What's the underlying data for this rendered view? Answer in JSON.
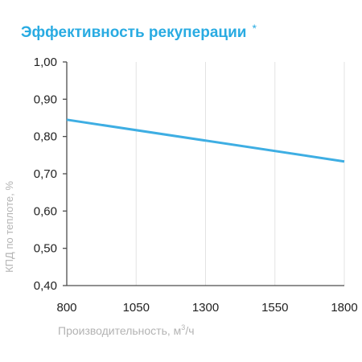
{
  "chart_data": {
    "type": "line",
    "title": "Эффективность рекуперации",
    "title_mark": "*",
    "xlabel_main": "Производительность, м",
    "xlabel_sup": "3",
    "xlabel_tail": "/ч",
    "ylabel": "КПД по теплоте, %",
    "x_ticks": [
      "800",
      "1050",
      "1300",
      "1550",
      "1800"
    ],
    "y_ticks": [
      "0,40",
      "0,50",
      "0,60",
      "0,70",
      "0,80",
      "0,90",
      "1,00"
    ],
    "xlim": [
      800,
      1800
    ],
    "ylim": [
      0.4,
      1.0
    ],
    "grid": "vertical",
    "series": [
      {
        "x": [
          800,
          1800
        ],
        "y": [
          0.845,
          0.733
        ]
      }
    ],
    "colors": {
      "title": "#29abe2",
      "line": "#3eaee3",
      "axis": "#4d4d4d",
      "grid": "#e3e3e3",
      "axis_title": "#b3b3b3"
    }
  }
}
